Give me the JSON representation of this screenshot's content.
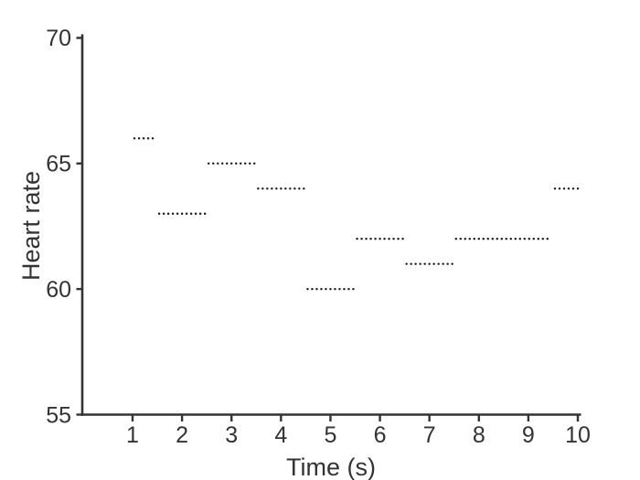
{
  "figure": {
    "background": "#ffffff"
  },
  "chart_data": {
    "type": "line",
    "subtype": "dotted-step",
    "title": "",
    "xlabel": "Time (s)",
    "ylabel": "Heart rate",
    "xlim": [
      0,
      10.1
    ],
    "ylim": [
      55,
      70
    ],
    "xticks": [
      1,
      2,
      3,
      4,
      5,
      6,
      7,
      8,
      9,
      10
    ],
    "yticks": [
      55,
      60,
      65,
      70
    ],
    "grid": false,
    "legend": null,
    "axis_color": "#333333",
    "text_color": "#333333",
    "series": [
      {
        "name": "heart-rate",
        "style": "dotted",
        "color": "#1a1a1a",
        "segments": [
          {
            "t_start": 1.0,
            "t_end": 1.5,
            "value": 66
          },
          {
            "t_start": 1.5,
            "t_end": 2.5,
            "value": 63
          },
          {
            "t_start": 2.5,
            "t_end": 3.5,
            "value": 65
          },
          {
            "t_start": 3.5,
            "t_end": 4.5,
            "value": 64
          },
          {
            "t_start": 4.5,
            "t_end": 5.5,
            "value": 60
          },
          {
            "t_start": 5.5,
            "t_end": 6.5,
            "value": 62
          },
          {
            "t_start": 6.5,
            "t_end": 7.5,
            "value": 61
          },
          {
            "t_start": 7.5,
            "t_end": 9.5,
            "value": 62
          },
          {
            "t_start": 9.5,
            "t_end": 10.1,
            "value": 64
          }
        ]
      }
    ]
  }
}
